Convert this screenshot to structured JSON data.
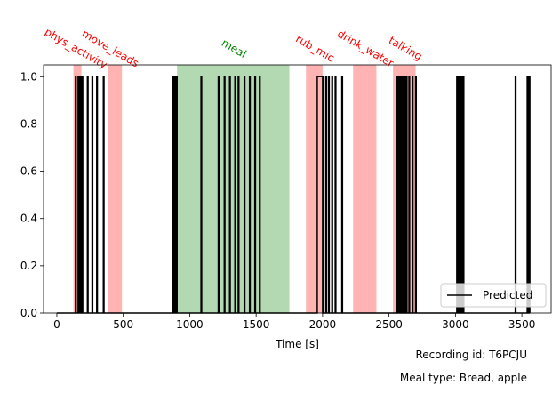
{
  "chart_data": {
    "type": "line",
    "title": "",
    "xlabel": "Time [s]",
    "ylabel": "",
    "xlim": [
      -100,
      3720
    ],
    "ylim": [
      0,
      1.05
    ],
    "x_ticks": [
      0,
      500,
      1000,
      1500,
      2000,
      2500,
      3000,
      3500
    ],
    "y_ticks": [
      0.0,
      0.2,
      0.4,
      0.6,
      0.8,
      1.0
    ],
    "x_tick_labels": [
      "0",
      "500",
      "1000",
      "1500",
      "2000",
      "2500",
      "3000",
      "3500"
    ],
    "y_tick_labels": [
      "0.0",
      "0.2",
      "0.4",
      "0.6",
      "0.8",
      "1.0"
    ],
    "grid": false,
    "legend": {
      "position": "lower-right",
      "entries": [
        "Predicted"
      ]
    },
    "series": [
      {
        "name": "Predicted",
        "color": "#000000",
        "pulses": [
          [
            140,
            145
          ],
          [
            160,
            165
          ],
          [
            175,
            180
          ],
          [
            190,
            195
          ],
          [
            230,
            235
          ],
          [
            265,
            270
          ],
          [
            300,
            305
          ],
          [
            350,
            355
          ],
          [
            870,
            880
          ],
          [
            886,
            892
          ],
          [
            900,
            905
          ],
          [
            1085,
            1090
          ],
          [
            1215,
            1220
          ],
          [
            1260,
            1265
          ],
          [
            1300,
            1305
          ],
          [
            1340,
            1345
          ],
          [
            1365,
            1370
          ],
          [
            1410,
            1415
          ],
          [
            1450,
            1455
          ],
          [
            1490,
            1495
          ],
          [
            1525,
            1530
          ],
          [
            1960,
            2000
          ],
          [
            2005,
            2010
          ],
          [
            2025,
            2030
          ],
          [
            2045,
            2050
          ],
          [
            2070,
            2075
          ],
          [
            2095,
            2100
          ],
          [
            2145,
            2150
          ],
          [
            2555,
            2560
          ],
          [
            2570,
            2575
          ],
          [
            2585,
            2590
          ],
          [
            2600,
            2605
          ],
          [
            2615,
            2620
          ],
          [
            2630,
            2635
          ],
          [
            2650,
            2655
          ],
          [
            2675,
            2680
          ],
          [
            2700,
            2705
          ],
          [
            3010,
            3013
          ],
          [
            3020,
            3023
          ],
          [
            3030,
            3033
          ],
          [
            3040,
            3043
          ],
          [
            3050,
            3053
          ],
          [
            3060,
            3063
          ],
          [
            3450,
            3455
          ],
          [
            3540,
            3545
          ],
          [
            3555,
            3560
          ]
        ],
        "x_start": 0,
        "x_end": 3560
      }
    ],
    "annotations": [
      {
        "label": "phys_activity",
        "start": 125,
        "end": 185,
        "color": "#ff0000",
        "text_x": 130
      },
      {
        "label": "move_leads",
        "start": 385,
        "end": 490,
        "color": "#ff0000",
        "text_x": 390
      },
      {
        "label": "meal",
        "start": 905,
        "end": 1750,
        "color": "#008000",
        "text_x": 1320
      },
      {
        "label": "rub_mic",
        "start": 1875,
        "end": 2000,
        "color": "#ff0000",
        "text_x": 1930
      },
      {
        "label": "drink_water",
        "start": 2230,
        "end": 2405,
        "color": "#ff0000",
        "text_x": 2310
      },
      {
        "label": "talking",
        "start": 2530,
        "end": 2700,
        "color": "#ff0000",
        "text_x": 2610
      }
    ]
  },
  "footer": {
    "recording_id": "Recording id: T6PCJU",
    "meal_type": "Meal type: Bread, apple"
  }
}
